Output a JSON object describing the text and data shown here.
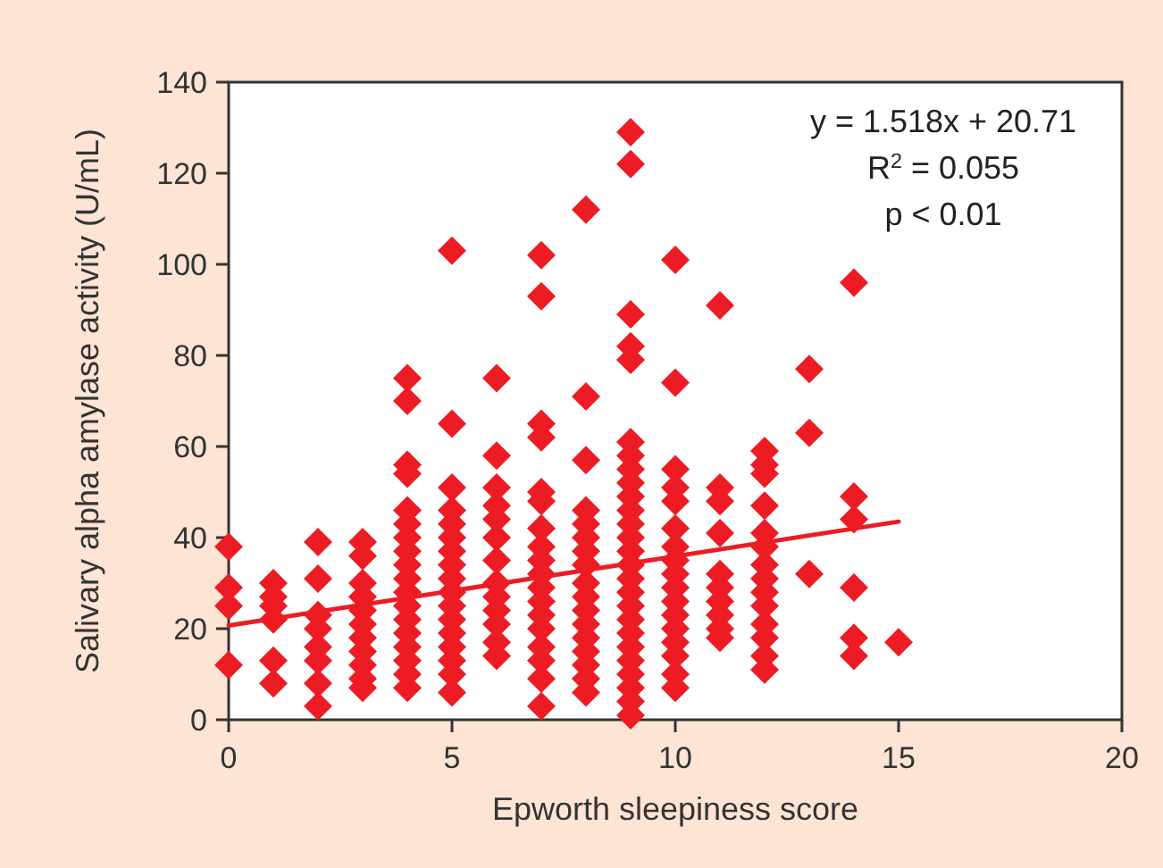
{
  "chart_data": {
    "type": "scatter",
    "xlabel": "Epworth sleepiness score",
    "ylabel": "Salivary alpha amylase activity (U/mL)",
    "xlim": [
      0,
      20
    ],
    "ylim": [
      0,
      140
    ],
    "xticks": [
      0,
      5,
      10,
      15,
      20
    ],
    "yticks": [
      0,
      20,
      40,
      60,
      80,
      100,
      120,
      140
    ],
    "grid": false,
    "marker": "diamond",
    "annotations": [
      "y = 1.518x + 20.71",
      "R$^{2}$ = 0.055",
      "p < 0.01"
    ],
    "series": [
      {
        "color": "#ed1c24",
        "x": [
          0,
          0,
          0,
          0,
          1,
          1,
          1,
          1,
          1,
          1,
          2,
          2,
          2,
          2,
          2,
          2,
          2,
          2,
          3,
          3,
          3,
          3,
          3,
          3,
          3,
          3,
          3,
          3,
          3,
          4,
          4,
          4,
          4,
          4,
          4,
          4,
          4,
          4,
          4,
          4,
          4,
          4,
          4,
          4,
          4,
          4,
          4,
          5,
          5,
          5,
          5,
          5,
          5,
          5,
          5,
          5,
          5,
          5,
          5,
          5,
          5,
          5,
          5,
          5,
          6,
          6,
          6,
          6,
          6,
          6,
          6,
          6,
          6,
          6,
          6,
          6,
          6,
          7,
          7,
          7,
          7,
          7,
          7,
          7,
          7,
          7,
          7,
          7,
          7,
          7,
          7,
          7,
          7,
          7,
          7,
          8,
          8,
          8,
          8,
          8,
          8,
          8,
          8,
          8,
          8,
          8,
          8,
          8,
          8,
          8,
          8,
          8,
          9,
          9,
          9,
          9,
          9,
          9,
          9,
          9,
          9,
          9,
          9,
          9,
          9,
          9,
          9,
          9,
          9,
          9,
          9,
          9,
          9,
          9,
          9,
          9,
          9,
          9,
          10,
          10,
          10,
          10,
          10,
          10,
          10,
          10,
          10,
          10,
          10,
          10,
          10,
          10,
          10,
          10,
          10,
          11,
          11,
          11,
          11,
          11,
          11,
          11,
          11,
          11,
          11,
          12,
          12,
          12,
          12,
          12,
          12,
          12,
          12,
          12,
          12,
          12,
          12,
          12,
          12,
          13,
          13,
          13,
          14,
          14,
          14,
          14,
          14,
          14,
          15
        ],
        "values": [
          38,
          29,
          25,
          12,
          30,
          27,
          25,
          22,
          13,
          8,
          39,
          31,
          23,
          20,
          16,
          13,
          8,
          3,
          39,
          36,
          30,
          27,
          24,
          21,
          18,
          15,
          12,
          9,
          7,
          75,
          70,
          56,
          54,
          46,
          43,
          40,
          37,
          34,
          31,
          28,
          25,
          22,
          19,
          16,
          13,
          10,
          7,
          103,
          65,
          51,
          46,
          43,
          40,
          37,
          34,
          31,
          28,
          25,
          22,
          19,
          16,
          13,
          10,
          6,
          75,
          58,
          51,
          47,
          44,
          40,
          35,
          30,
          27,
          24,
          21,
          17,
          14,
          102,
          93,
          65,
          62,
          50,
          48,
          42,
          38,
          35,
          32,
          29,
          26,
          23,
          20,
          16,
          13,
          9,
          3,
          112,
          71,
          57,
          46,
          43,
          40,
          37,
          34,
          30,
          27,
          24,
          21,
          18,
          15,
          12,
          9,
          6,
          129,
          122,
          89,
          82,
          79,
          61,
          58,
          55,
          52,
          49,
          46,
          43,
          40,
          37,
          34,
          31,
          28,
          25,
          22,
          19,
          16,
          13,
          10,
          7,
          4,
          1,
          101,
          74,
          55,
          51,
          48,
          42,
          38,
          35,
          32,
          29,
          26,
          23,
          20,
          17,
          14,
          10,
          7,
          91,
          51,
          48,
          41,
          32,
          29,
          26,
          23,
          20,
          18,
          59,
          56,
          54,
          47,
          41,
          38,
          34,
          31,
          28,
          25,
          21,
          18,
          14,
          11,
          77,
          63,
          32,
          96,
          49,
          44,
          29,
          18,
          14,
          17
        ]
      },
      {
        "type": "line",
        "color": "#ed1c24",
        "x": [
          0,
          15
        ],
        "values": [
          20.7,
          43.5
        ],
        "marker": "none",
        "line_style": "solid"
      }
    ]
  }
}
